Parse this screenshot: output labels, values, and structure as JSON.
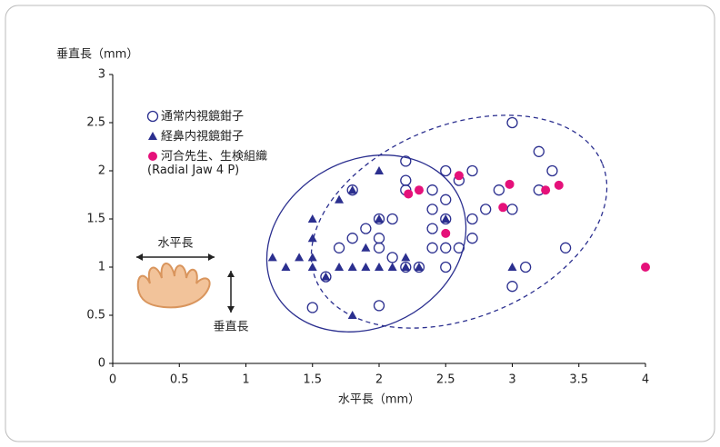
{
  "chart_data": {
    "type": "scatter",
    "y_label": "垂直長（mm）",
    "x_label": "水平長（mm）",
    "xlim": [
      0,
      4
    ],
    "ylim": [
      0,
      3
    ],
    "xticks": [
      0,
      0.5,
      1,
      1.5,
      2,
      2.5,
      3,
      3.5,
      4
    ],
    "yticks": [
      0,
      0.5,
      1,
      1.5,
      2,
      2.5,
      3
    ],
    "grid": false,
    "annotations": [
      "水平長",
      "垂直長"
    ],
    "series": [
      {
        "name": [
          "通常内視鏡鉗子"
        ],
        "color": "#2b2f8f",
        "marker": "open-circle",
        "x": [
          1.5,
          1.6,
          1.7,
          1.8,
          1.8,
          1.9,
          2.0,
          2.0,
          2.0,
          2.0,
          2.1,
          2.1,
          2.2,
          2.2,
          2.2,
          2.2,
          2.3,
          2.4,
          2.4,
          2.4,
          2.4,
          2.5,
          2.5,
          2.5,
          2.5,
          2.5,
          2.6,
          2.6,
          2.7,
          2.7,
          2.7,
          2.8,
          2.9,
          3.0,
          3.0,
          3.0,
          3.1,
          3.2,
          3.2,
          3.3,
          3.4
        ],
        "values": [
          0.58,
          0.9,
          1.2,
          1.3,
          1.8,
          1.4,
          1.5,
          1.3,
          1.2,
          0.6,
          1.5,
          1.1,
          2.1,
          1.9,
          1.8,
          1.0,
          1.0,
          1.8,
          1.6,
          1.2,
          1.4,
          2.0,
          1.7,
          1.5,
          1.2,
          1.0,
          1.2,
          1.9,
          2.0,
          1.5,
          1.3,
          1.6,
          1.8,
          2.5,
          1.6,
          0.8,
          1.0,
          2.2,
          1.8,
          2.0,
          1.2
        ]
      },
      {
        "name": [
          "経鼻内視鏡鉗子"
        ],
        "color": "#2b2f8f",
        "marker": "triangle",
        "x": [
          1.2,
          1.3,
          1.4,
          1.5,
          1.5,
          1.5,
          1.5,
          1.6,
          1.7,
          1.7,
          1.8,
          1.8,
          1.8,
          1.9,
          1.9,
          2.0,
          2.0,
          2.0,
          2.1,
          2.2,
          2.2,
          2.3,
          2.5,
          3.0
        ],
        "values": [
          1.1,
          1.0,
          1.1,
          1.5,
          1.3,
          1.1,
          1.0,
          0.9,
          1.7,
          1.0,
          1.8,
          1.0,
          0.5,
          1.2,
          1.0,
          2.0,
          1.5,
          1.0,
          1.0,
          1.1,
          1.0,
          1.0,
          1.5,
          1.0
        ]
      },
      {
        "name": [
          "河合先生、生検組織",
          "(Radial Jaw 4 P)"
        ],
        "color": "#e5117a",
        "marker": "filled-circle",
        "x": [
          2.22,
          2.3,
          2.5,
          2.6,
          2.93,
          2.98,
          3.25,
          3.35,
          4.0
        ],
        "values": [
          1.76,
          1.8,
          1.35,
          1.95,
          1.62,
          1.86,
          1.8,
          1.85,
          1.0
        ]
      }
    ]
  }
}
